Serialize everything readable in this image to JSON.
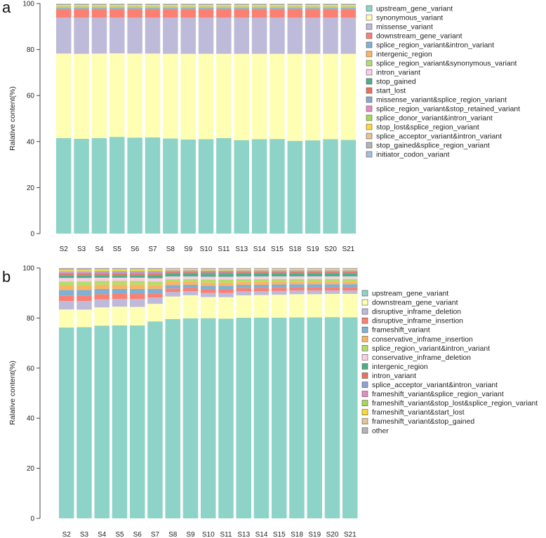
{
  "colors": [
    "#8dd3c7",
    "#ffffb3",
    "#bebada",
    "#fb8072",
    "#80b1d3",
    "#fdb462",
    "#b3de69",
    "#fccde5",
    "#4daf8a",
    "#e8735a",
    "#8fa3d1",
    "#e78ac3",
    "#a6d854",
    "#ffd92f",
    "#e5c494",
    "#b3b3b3",
    "#a6bddb"
  ],
  "chart_data": [
    {
      "panel": "a",
      "type": "bar",
      "stacked": true,
      "ylabel": "Ralative content(%)",
      "ylim": [
        0,
        100
      ],
      "yticks": [
        0,
        20,
        40,
        60,
        80,
        100
      ],
      "categories": [
        "S2",
        "S3",
        "S4",
        "S5",
        "S6",
        "S7",
        "S8",
        "S9",
        "S10",
        "S11",
        "S13",
        "S14",
        "S15",
        "S18",
        "S19",
        "S20",
        "S21"
      ],
      "legend_position": "right",
      "series": [
        {
          "name": "upstream_gene_variant",
          "values": [
            41.5,
            41.2,
            41.5,
            42.0,
            41.7,
            41.8,
            41.3,
            40.9,
            41.0,
            41.5,
            40.6,
            41.0,
            41.1,
            40.3,
            40.5,
            41.0,
            40.7
          ]
        },
        {
          "name": "synonymous_variant",
          "values": [
            36.7,
            36.9,
            36.7,
            36.3,
            36.5,
            36.4,
            36.8,
            37.2,
            37.1,
            36.6,
            37.5,
            37.1,
            37.0,
            37.8,
            37.6,
            37.1,
            37.4
          ]
        },
        {
          "name": "missense_variant",
          "values": [
            15.6,
            15.7,
            15.6,
            15.5,
            15.6,
            15.6,
            15.7,
            15.7,
            15.7,
            15.7,
            15.7,
            15.7,
            15.7,
            15.7,
            15.7,
            15.7,
            15.7
          ]
        },
        {
          "name": "downstream_gene_variant",
          "values": [
            3.6,
            3.6,
            3.6,
            3.6,
            3.6,
            3.6,
            3.6,
            3.6,
            3.6,
            3.6,
            3.6,
            3.6,
            3.6,
            3.6,
            3.6,
            3.6,
            3.6
          ]
        },
        {
          "name": "splice_region_variant&intron_variant",
          "values": [
            0.6,
            0.6,
            0.6,
            0.6,
            0.6,
            0.6,
            0.6,
            0.6,
            0.6,
            0.6,
            0.6,
            0.6,
            0.6,
            0.6,
            0.6,
            0.6,
            0.6
          ]
        },
        {
          "name": "intergenic_region",
          "values": [
            0.6,
            0.6,
            0.6,
            0.6,
            0.6,
            0.6,
            0.6,
            0.6,
            0.6,
            0.6,
            0.6,
            0.6,
            0.6,
            0.6,
            0.6,
            0.6,
            0.6
          ]
        },
        {
          "name": "splice_region_variant&synonymous_variant",
          "values": [
            0.4,
            0.4,
            0.4,
            0.4,
            0.4,
            0.4,
            0.4,
            0.4,
            0.4,
            0.4,
            0.4,
            0.4,
            0.4,
            0.4,
            0.4,
            0.4,
            0.4
          ]
        },
        {
          "name": "intron_variant",
          "values": [
            0.3,
            0.3,
            0.3,
            0.3,
            0.3,
            0.3,
            0.3,
            0.3,
            0.3,
            0.3,
            0.3,
            0.3,
            0.3,
            0.3,
            0.3,
            0.3,
            0.3
          ]
        },
        {
          "name": "stop_gained",
          "values": [
            0.2,
            0.2,
            0.2,
            0.2,
            0.2,
            0.2,
            0.2,
            0.2,
            0.2,
            0.2,
            0.2,
            0.2,
            0.2,
            0.2,
            0.2,
            0.2,
            0.2
          ]
        },
        {
          "name": "start_lost",
          "values": [
            0.1,
            0.1,
            0.1,
            0.1,
            0.1,
            0.1,
            0.1,
            0.1,
            0.1,
            0.1,
            0.1,
            0.1,
            0.1,
            0.1,
            0.1,
            0.1,
            0.1
          ]
        },
        {
          "name": "missense_variant&splice_region_variant",
          "values": [
            0.1,
            0.1,
            0.1,
            0.1,
            0.1,
            0.1,
            0.1,
            0.1,
            0.1,
            0.1,
            0.1,
            0.1,
            0.1,
            0.1,
            0.1,
            0.1,
            0.1
          ]
        },
        {
          "name": "splice_region_variant&stop_retained_variant",
          "values": [
            0.05,
            0.05,
            0.05,
            0.05,
            0.05,
            0.05,
            0.05,
            0.05,
            0.05,
            0.05,
            0.05,
            0.05,
            0.05,
            0.05,
            0.05,
            0.05,
            0.05
          ]
        },
        {
          "name": "splice_donor_variant&intron_variant",
          "values": [
            0.05,
            0.05,
            0.05,
            0.05,
            0.05,
            0.05,
            0.05,
            0.05,
            0.05,
            0.05,
            0.05,
            0.05,
            0.05,
            0.05,
            0.05,
            0.05,
            0.05
          ]
        },
        {
          "name": "stop_lost&splice_region_variant",
          "values": [
            0.05,
            0.05,
            0.05,
            0.05,
            0.05,
            0.05,
            0.05,
            0.05,
            0.05,
            0.05,
            0.05,
            0.05,
            0.05,
            0.05,
            0.05,
            0.05,
            0.05
          ]
        },
        {
          "name": "splice_acceptor_variant&intron_variant",
          "values": [
            0.05,
            0.05,
            0.05,
            0.05,
            0.05,
            0.05,
            0.05,
            0.05,
            0.05,
            0.05,
            0.05,
            0.05,
            0.05,
            0.05,
            0.05,
            0.05,
            0.05
          ]
        },
        {
          "name": "stop_gained&splice_region_variant",
          "values": [
            0.03,
            0.03,
            0.03,
            0.03,
            0.03,
            0.03,
            0.03,
            0.03,
            0.03,
            0.03,
            0.03,
            0.03,
            0.03,
            0.03,
            0.03,
            0.03,
            0.03
          ]
        },
        {
          "name": "initiator_codon_variant",
          "values": [
            0.02,
            0.02,
            0.02,
            0.02,
            0.02,
            0.02,
            0.02,
            0.02,
            0.02,
            0.02,
            0.02,
            0.02,
            0.02,
            0.02,
            0.02,
            0.02,
            0.02
          ]
        }
      ]
    },
    {
      "panel": "b",
      "type": "bar",
      "stacked": true,
      "ylabel": "Ralative content(%)",
      "ylim": [
        0,
        100
      ],
      "yticks": [
        0,
        20,
        40,
        60,
        80,
        100
      ],
      "categories": [
        "S2",
        "S3",
        "S4",
        "S5",
        "S6",
        "S7",
        "S8",
        "S9",
        "S10",
        "S11",
        "S13",
        "S14",
        "S15",
        "S18",
        "S19",
        "S20",
        "S21"
      ],
      "legend_position": "right",
      "series": [
        {
          "name": "upstream_gene_variant",
          "values": [
            76.2,
            76.2,
            77.2,
            77.3,
            77.2,
            78.5,
            79.6,
            79.9,
            79.7,
            79.2,
            79.7,
            80.0,
            80.2,
            80.4,
            80.5,
            80.6,
            80.6
          ]
        },
        {
          "name": "downstream_gene_variant",
          "values": [
            7.2,
            7.0,
            7.3,
            7.5,
            7.4,
            7.0,
            9.0,
            9.2,
            8.4,
            8.5,
            8.9,
            9.0,
            9.2,
            9.3,
            9.3,
            9.3,
            9.4
          ]
        },
        {
          "name": "disruptive_inframe_deletion",
          "values": [
            3.4,
            3.4,
            3.2,
            3.1,
            3.2,
            2.5,
            1.8,
            1.6,
            1.7,
            1.7,
            1.6,
            1.5,
            1.5,
            1.5,
            1.5,
            1.4,
            1.4
          ]
        },
        {
          "name": "disruptive_inframe_insertion",
          "values": [
            2.2,
            2.2,
            2.1,
            2.0,
            2.0,
            1.7,
            1.4,
            1.3,
            1.4,
            1.4,
            1.3,
            1.3,
            1.3,
            1.3,
            1.3,
            1.3,
            1.3
          ]
        },
        {
          "name": "frameshift_variant",
          "values": [
            2.2,
            2.2,
            2.1,
            2.0,
            2.0,
            1.8,
            1.4,
            1.3,
            1.4,
            1.4,
            1.3,
            1.3,
            1.3,
            1.2,
            1.2,
            1.2,
            1.2
          ]
        },
        {
          "name": "conservative_inframe_insertion",
          "values": [
            1.8,
            1.8,
            1.7,
            1.7,
            1.7,
            1.5,
            1.2,
            1.2,
            1.3,
            1.3,
            1.2,
            1.2,
            1.1,
            1.1,
            1.1,
            1.1,
            1.1
          ]
        },
        {
          "name": "splice_region_variant&intron_variant",
          "values": [
            1.6,
            1.6,
            1.5,
            1.5,
            1.5,
            1.4,
            1.1,
            1.1,
            1.2,
            1.2,
            1.1,
            1.1,
            1.1,
            1.0,
            1.0,
            1.0,
            1.0
          ]
        },
        {
          "name": "conservative_inframe_deletion",
          "values": [
            1.4,
            1.4,
            1.3,
            1.3,
            1.3,
            1.3,
            1.1,
            1.0,
            1.1,
            1.1,
            1.0,
            1.0,
            1.0,
            1.0,
            1.0,
            1.0,
            1.0
          ]
        },
        {
          "name": "intergenic_region",
          "values": [
            1.0,
            1.0,
            1.0,
            1.0,
            1.0,
            1.2,
            1.2,
            1.2,
            1.2,
            1.2,
            1.2,
            1.2,
            1.2,
            1.2,
            1.2,
            1.2,
            1.2
          ]
        },
        {
          "name": "intron_variant",
          "values": [
            0.6,
            0.6,
            0.6,
            0.6,
            0.6,
            0.6,
            0.5,
            0.5,
            0.5,
            0.5,
            0.5,
            0.5,
            0.5,
            0.5,
            0.5,
            0.5,
            0.5
          ]
        },
        {
          "name": "splice_acceptor_variant&intron_variant",
          "values": [
            0.5,
            0.5,
            0.5,
            0.5,
            0.5,
            0.5,
            0.4,
            0.4,
            0.4,
            0.4,
            0.4,
            0.4,
            0.4,
            0.4,
            0.4,
            0.4,
            0.4
          ]
        },
        {
          "name": "frameshift_variant&splice_region_variant",
          "values": [
            0.4,
            0.4,
            0.4,
            0.4,
            0.4,
            0.4,
            0.3,
            0.3,
            0.3,
            0.3,
            0.3,
            0.3,
            0.3,
            0.3,
            0.3,
            0.3,
            0.3
          ]
        },
        {
          "name": "frameshift_variant&stop_lost&splice_region_variant",
          "values": [
            0.3,
            0.3,
            0.3,
            0.3,
            0.3,
            0.3,
            0.2,
            0.2,
            0.2,
            0.2,
            0.2,
            0.2,
            0.2,
            0.2,
            0.2,
            0.2,
            0.2
          ]
        },
        {
          "name": "frameshift_variant&start_lost",
          "values": [
            0.3,
            0.3,
            0.3,
            0.3,
            0.3,
            0.3,
            0.2,
            0.2,
            0.2,
            0.2,
            0.2,
            0.2,
            0.2,
            0.2,
            0.2,
            0.2,
            0.2
          ]
        },
        {
          "name": "frameshift_variant&stop_gained",
          "values": [
            0.2,
            0.2,
            0.2,
            0.2,
            0.2,
            0.2,
            0.2,
            0.2,
            0.2,
            0.2,
            0.2,
            0.2,
            0.2,
            0.2,
            0.2,
            0.2,
            0.2
          ]
        },
        {
          "name": "other",
          "values": [
            0.7,
            0.7,
            0.6,
            0.6,
            0.6,
            0.6,
            0.4,
            0.4,
            0.5,
            0.5,
            0.4,
            0.4,
            0.4,
            0.4,
            0.4,
            0.4,
            0.4
          ]
        }
      ]
    }
  ]
}
